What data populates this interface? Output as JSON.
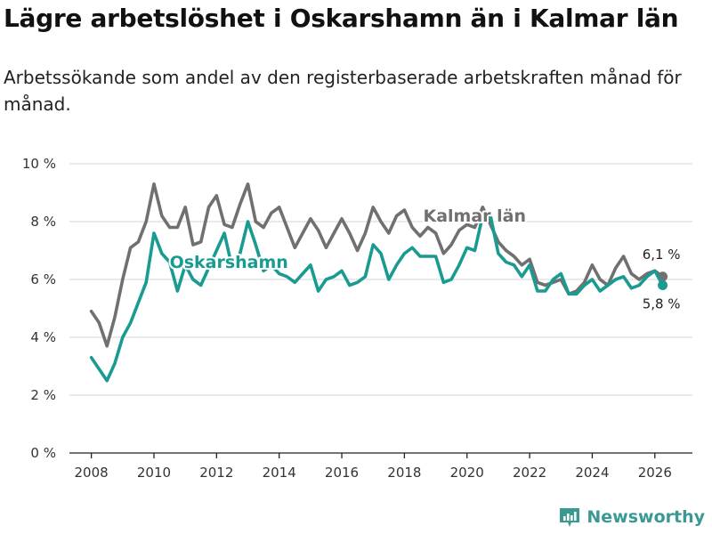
{
  "header": {
    "title": "Lägre arbetslöshet i Oskarshamn än i Kalmar län",
    "subtitle": "Arbetssökande som andel av den registerbaserade arbetskraften månad för månad."
  },
  "brand": {
    "name": "Newsworthy"
  },
  "chart_data": {
    "type": "line",
    "title": "Lägre arbetslöshet i Oskarshamn än i Kalmar län",
    "subtitle": "Arbetssökande som andel av den registerbaserade arbetskraften månad för månad.",
    "xlabel": "",
    "ylabel": "",
    "xlim": [
      2007.3,
      2027.2
    ],
    "ylim": [
      0,
      10
    ],
    "grid": true,
    "x_ticks": [
      2008,
      2010,
      2012,
      2014,
      2016,
      2018,
      2020,
      2022,
      2024,
      2026
    ],
    "x_tick_labels": [
      "2008",
      "2010",
      "2012",
      "2014",
      "2016",
      "2018",
      "2020",
      "2022",
      "2024",
      "2026"
    ],
    "y_ticks": [
      0,
      2,
      4,
      6,
      8,
      10
    ],
    "y_tick_labels": [
      "0 %",
      "2 %",
      "4 %",
      "6 %",
      "8 %",
      "10 %"
    ],
    "series": [
      {
        "name": "Kalmar län",
        "color": "#707070",
        "label": "Kalmar län",
        "end_label": "6,1 %",
        "x": [
          2008.0,
          2008.25,
          2008.5,
          2008.75,
          2009.0,
          2009.25,
          2009.5,
          2009.75,
          2010.0,
          2010.25,
          2010.5,
          2010.75,
          2011.0,
          2011.25,
          2011.5,
          2011.75,
          2012.0,
          2012.25,
          2012.5,
          2012.75,
          2013.0,
          2013.25,
          2013.5,
          2013.75,
          2014.0,
          2014.25,
          2014.5,
          2014.75,
          2015.0,
          2015.25,
          2015.5,
          2015.75,
          2016.0,
          2016.25,
          2016.5,
          2016.75,
          2017.0,
          2017.25,
          2017.5,
          2017.75,
          2018.0,
          2018.25,
          2018.5,
          2018.75,
          2019.0,
          2019.25,
          2019.5,
          2019.75,
          2020.0,
          2020.25,
          2020.5,
          2020.75,
          2021.0,
          2021.25,
          2021.5,
          2021.75,
          2022.0,
          2022.25,
          2022.5,
          2022.75,
          2023.0,
          2023.25,
          2023.5,
          2023.75,
          2024.0,
          2024.25,
          2024.5,
          2024.75,
          2025.0,
          2025.25,
          2025.5,
          2025.75,
          2026.0,
          2026.25
        ],
        "values": [
          4.9,
          4.5,
          3.7,
          4.7,
          6.0,
          7.1,
          7.3,
          8.0,
          9.3,
          8.2,
          7.8,
          7.8,
          8.5,
          7.2,
          7.3,
          8.5,
          8.9,
          7.9,
          7.8,
          8.6,
          9.3,
          8.0,
          7.8,
          8.3,
          8.5,
          7.8,
          7.1,
          7.6,
          8.1,
          7.7,
          7.1,
          7.6,
          8.1,
          7.6,
          7.0,
          7.6,
          8.5,
          8.0,
          7.6,
          8.2,
          8.4,
          7.8,
          7.5,
          7.8,
          7.6,
          6.9,
          7.2,
          7.7,
          7.9,
          7.8,
          8.5,
          7.9,
          7.3,
          7.0,
          6.8,
          6.5,
          6.7,
          5.9,
          5.8,
          5.9,
          6.0,
          5.5,
          5.6,
          5.9,
          6.5,
          6.0,
          5.8,
          6.4,
          6.8,
          6.2,
          6.0,
          6.2,
          6.3,
          6.1
        ]
      },
      {
        "name": "Oskarshamn",
        "color": "#1a9b92",
        "label": "Oskarshamn",
        "end_label": "5,8 %",
        "x": [
          2008.0,
          2008.25,
          2008.5,
          2008.75,
          2009.0,
          2009.25,
          2009.5,
          2009.75,
          2010.0,
          2010.25,
          2010.5,
          2010.75,
          2011.0,
          2011.25,
          2011.5,
          2011.75,
          2012.0,
          2012.25,
          2012.5,
          2012.75,
          2013.0,
          2013.25,
          2013.5,
          2013.75,
          2014.0,
          2014.25,
          2014.5,
          2014.75,
          2015.0,
          2015.25,
          2015.5,
          2015.75,
          2016.0,
          2016.25,
          2016.5,
          2016.75,
          2017.0,
          2017.25,
          2017.5,
          2017.75,
          2018.0,
          2018.25,
          2018.5,
          2018.75,
          2019.0,
          2019.25,
          2019.5,
          2019.75,
          2020.0,
          2020.25,
          2020.5,
          2020.75,
          2021.0,
          2021.25,
          2021.5,
          2021.75,
          2022.0,
          2022.25,
          2022.5,
          2022.75,
          2023.0,
          2023.25,
          2023.5,
          2023.75,
          2024.0,
          2024.25,
          2024.5,
          2024.75,
          2025.0,
          2025.25,
          2025.5,
          2025.75,
          2026.0,
          2026.25
        ],
        "values": [
          3.3,
          2.9,
          2.5,
          3.1,
          4.0,
          4.5,
          5.2,
          5.9,
          7.6,
          6.9,
          6.6,
          5.6,
          6.5,
          6.0,
          5.8,
          6.4,
          7.0,
          7.6,
          6.4,
          6.9,
          8.0,
          7.2,
          6.3,
          6.5,
          6.2,
          6.1,
          5.9,
          6.2,
          6.5,
          5.6,
          6.0,
          6.1,
          6.3,
          5.8,
          5.9,
          6.1,
          7.2,
          6.9,
          6.0,
          6.5,
          6.9,
          7.1,
          6.8,
          6.8,
          6.8,
          5.9,
          6.0,
          6.5,
          7.1,
          7.0,
          8.2,
          8.2,
          6.9,
          6.6,
          6.5,
          6.1,
          6.5,
          5.6,
          5.6,
          6.0,
          6.2,
          5.5,
          5.5,
          5.8,
          6.0,
          5.6,
          5.8,
          6.0,
          6.1,
          5.7,
          5.8,
          6.1,
          6.3,
          5.8
        ]
      }
    ]
  }
}
